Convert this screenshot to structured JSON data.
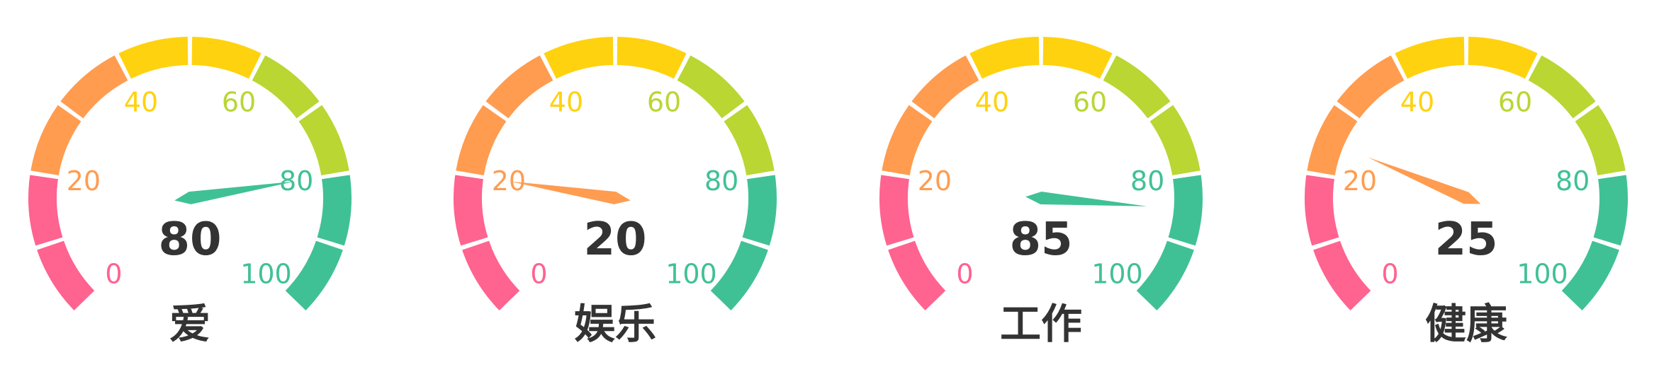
{
  "chart_data": {
    "type": "gauge",
    "min": 0,
    "max": 100,
    "tick_labels": [
      "0",
      "20",
      "40",
      "60",
      "80",
      "100"
    ],
    "band_colors": [
      "#ff6390",
      "#ff9c50",
      "#ffd20f",
      "#b9d633",
      "#40c195"
    ],
    "gauges": [
      {
        "title": "爱",
        "value": 80
      },
      {
        "title": "娱乐",
        "value": 20
      },
      {
        "title": "工作",
        "value": 85
      },
      {
        "title": "健康",
        "value": 25
      }
    ]
  }
}
